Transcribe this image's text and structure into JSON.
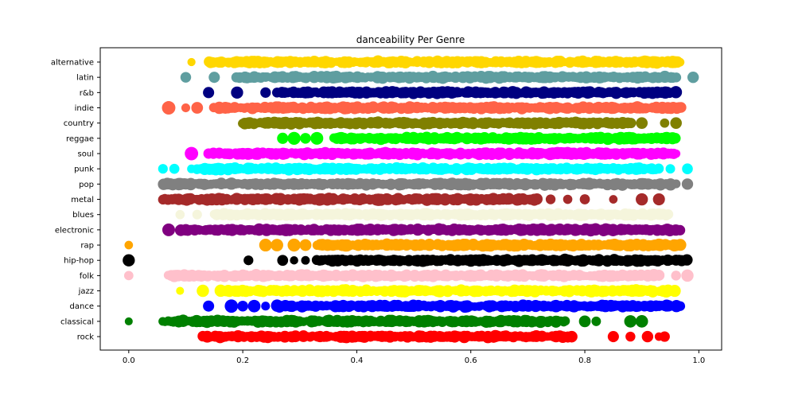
{
  "chart_data": {
    "type": "scatter",
    "title": "danceability Per Genre",
    "xlabel": "",
    "ylabel": "",
    "xlim": [
      -0.05,
      1.04
    ],
    "x_ticks": [
      0.0,
      0.2,
      0.4,
      0.6,
      0.8,
      1.0
    ],
    "x_tick_labels": [
      "0.0",
      "0.2",
      "0.4",
      "0.6",
      "0.8",
      "1.0"
    ],
    "grid": false,
    "legend": "none",
    "categories": [
      "rock",
      "classical",
      "dance",
      "jazz",
      "folk",
      "hip-hop",
      "rap",
      "electronic",
      "blues",
      "metal",
      "pop",
      "punk",
      "soul",
      "reggae",
      "country",
      "indie",
      "r&b",
      "latin",
      "alternative"
    ],
    "series": [
      {
        "category": "rock",
        "color": "#ff0000",
        "min": 0.1,
        "max": 0.95,
        "dense_start": 0.13,
        "dense_end": 0.78,
        "outliers": [
          0.85,
          0.88,
          0.91,
          0.93,
          0.94
        ]
      },
      {
        "category": "classical",
        "color": "#008000",
        "min": 0.0,
        "max": 0.9,
        "dense_start": 0.06,
        "dense_end": 0.77,
        "outliers": [
          0.0,
          0.8,
          0.82,
          0.88,
          0.9
        ]
      },
      {
        "category": "dance",
        "color": "#0000ff",
        "min": 0.14,
        "max": 0.98,
        "dense_start": 0.26,
        "dense_end": 0.97,
        "outliers": [
          0.14,
          0.18,
          0.2,
          0.22,
          0.24
        ]
      },
      {
        "category": "jazz",
        "color": "#ffff00",
        "min": 0.09,
        "max": 0.96,
        "dense_start": 0.16,
        "dense_end": 0.96,
        "outliers": [
          0.09,
          0.13
        ]
      },
      {
        "category": "folk",
        "color": "#ffc0cb",
        "min": 0.0,
        "max": 0.98,
        "dense_start": 0.07,
        "dense_end": 0.93,
        "outliers": [
          0.0,
          0.96,
          0.98
        ]
      },
      {
        "category": "hip-hop",
        "color": "#000000",
        "min": 0.0,
        "max": 0.98,
        "dense_start": 0.33,
        "dense_end": 0.98,
        "outliers": [
          0.0,
          0.21,
          0.27,
          0.29,
          0.31
        ]
      },
      {
        "category": "rap",
        "color": "#ffa500",
        "min": 0.0,
        "max": 0.98,
        "dense_start": 0.33,
        "dense_end": 0.97,
        "outliers": [
          0.0,
          0.24,
          0.26,
          0.29,
          0.31
        ]
      },
      {
        "category": "electronic",
        "color": "#800080",
        "min": 0.07,
        "max": 0.98,
        "dense_start": 0.09,
        "dense_end": 0.97,
        "outliers": [
          0.07
        ]
      },
      {
        "category": "blues",
        "color": "#f5f5dc",
        "min": 0.09,
        "max": 0.97,
        "dense_start": 0.15,
        "dense_end": 0.95,
        "outliers": [
          0.09,
          0.12
        ]
      },
      {
        "category": "metal",
        "color": "#a52a2a",
        "min": 0.06,
        "max": 0.93,
        "dense_start": 0.06,
        "dense_end": 0.72,
        "outliers": [
          0.74,
          0.77,
          0.8,
          0.85,
          0.9,
          0.93
        ]
      },
      {
        "category": "pop",
        "color": "#808080",
        "min": 0.06,
        "max": 0.98,
        "dense_start": 0.06,
        "dense_end": 0.96,
        "outliers": [
          0.98
        ]
      },
      {
        "category": "punk",
        "color": "#00ffff",
        "min": 0.06,
        "max": 0.98,
        "dense_start": 0.12,
        "dense_end": 0.93,
        "outliers": [
          0.06,
          0.08,
          0.11,
          0.95,
          0.98
        ]
      },
      {
        "category": "soul",
        "color": "#ff00ff",
        "min": 0.11,
        "max": 0.97,
        "dense_start": 0.15,
        "dense_end": 0.96,
        "outliers": [
          0.11,
          0.14
        ]
      },
      {
        "category": "reggae",
        "color": "#00ff00",
        "min": 0.27,
        "max": 0.97,
        "dense_start": 0.36,
        "dense_end": 0.96,
        "outliers": [
          0.27,
          0.29,
          0.31,
          0.33
        ]
      },
      {
        "category": "country",
        "color": "#808000",
        "min": 0.19,
        "max": 0.96,
        "dense_start": 0.2,
        "dense_end": 0.88,
        "outliers": [
          0.9,
          0.94,
          0.96
        ]
      },
      {
        "category": "indie",
        "color": "#ff6347",
        "min": 0.07,
        "max": 0.98,
        "dense_start": 0.15,
        "dense_end": 0.97,
        "outliers": [
          0.07,
          0.1,
          0.12
        ]
      },
      {
        "category": "r&b",
        "color": "#000080",
        "min": 0.14,
        "max": 0.97,
        "dense_start": 0.27,
        "dense_end": 0.96,
        "outliers": [
          0.14,
          0.19,
          0.24,
          0.26
        ]
      },
      {
        "category": "latin",
        "color": "#5f9ea0",
        "min": 0.1,
        "max": 0.99,
        "dense_start": 0.19,
        "dense_end": 0.96,
        "outliers": [
          0.1,
          0.15,
          0.99
        ]
      },
      {
        "category": "alternative",
        "color": "#ffd700",
        "min": 0.11,
        "max": 0.98,
        "dense_start": 0.14,
        "dense_end": 0.97,
        "outliers": [
          0.11
        ]
      }
    ]
  }
}
